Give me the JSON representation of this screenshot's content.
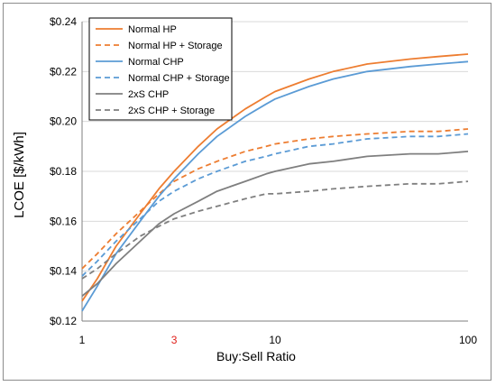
{
  "chart_data": {
    "type": "line",
    "title": "",
    "xlabel": "Buy:Sell Ratio",
    "ylabel": "LCOE [$/kWh]",
    "xscale": "log",
    "xlim": [
      1,
      100
    ],
    "ylim": [
      0.12,
      0.24
    ],
    "xticks": [
      {
        "value": 1,
        "label": "1",
        "color": "#000000"
      },
      {
        "value": 3,
        "label": "3",
        "color": "#e0201b"
      },
      {
        "value": 10,
        "label": "10",
        "color": "#000000"
      },
      {
        "value": 100,
        "label": "100",
        "color": "#000000"
      }
    ],
    "yticks": [
      {
        "value": 0.12,
        "label": "$0.12"
      },
      {
        "value": 0.14,
        "label": "$0.14"
      },
      {
        "value": 0.16,
        "label": "$0.16"
      },
      {
        "value": 0.18,
        "label": "$0.18"
      },
      {
        "value": 0.2,
        "label": "$0.20"
      },
      {
        "value": 0.22,
        "label": "$0.22"
      },
      {
        "value": 0.24,
        "label": "$0.24"
      }
    ],
    "grid": "horizontal",
    "legend_position": "top-left",
    "x": [
      1,
      1.2,
      1.5,
      2,
      2.5,
      3,
      4,
      5,
      7,
      9,
      10,
      15,
      20,
      30,
      50,
      70,
      100
    ],
    "series": [
      {
        "name": "Normal HP",
        "color": "#ed7d31",
        "dash": "solid",
        "values": [
          0.128,
          0.137,
          0.15,
          0.163,
          0.173,
          0.18,
          0.19,
          0.197,
          0.205,
          0.21,
          0.212,
          0.217,
          0.22,
          0.223,
          0.225,
          0.226,
          0.227
        ]
      },
      {
        "name": "Normal HP + Storage",
        "color": "#ed7d31",
        "dash": "dashed",
        "values": [
          0.141,
          0.147,
          0.155,
          0.164,
          0.171,
          0.176,
          0.181,
          0.184,
          0.188,
          0.19,
          0.191,
          0.193,
          0.194,
          0.195,
          0.196,
          0.196,
          0.197
        ]
      },
      {
        "name": "Normal CHP",
        "color": "#5b9bd5",
        "dash": "solid",
        "values": [
          0.124,
          0.134,
          0.147,
          0.16,
          0.17,
          0.177,
          0.187,
          0.194,
          0.202,
          0.207,
          0.209,
          0.214,
          0.217,
          0.22,
          0.222,
          0.223,
          0.224
        ]
      },
      {
        "name": "Normal CHP + Storage",
        "color": "#5b9bd5",
        "dash": "dashed",
        "values": [
          0.138,
          0.144,
          0.152,
          0.161,
          0.168,
          0.172,
          0.177,
          0.18,
          0.184,
          0.186,
          0.187,
          0.19,
          0.191,
          0.193,
          0.194,
          0.194,
          0.195
        ]
      },
      {
        "name": "2xS CHP",
        "color": "#7f7f7f",
        "dash": "solid",
        "values": [
          0.13,
          0.135,
          0.143,
          0.152,
          0.159,
          0.163,
          0.168,
          0.172,
          0.176,
          0.179,
          0.18,
          0.183,
          0.184,
          0.186,
          0.187,
          0.187,
          0.188
        ]
      },
      {
        "name": "2xS CHP + Storage",
        "color": "#7f7f7f",
        "dash": "dashed",
        "values": [
          0.137,
          0.141,
          0.147,
          0.154,
          0.158,
          0.161,
          0.164,
          0.166,
          0.169,
          0.171,
          0.171,
          0.172,
          0.173,
          0.174,
          0.175,
          0.175,
          0.176
        ]
      }
    ]
  }
}
